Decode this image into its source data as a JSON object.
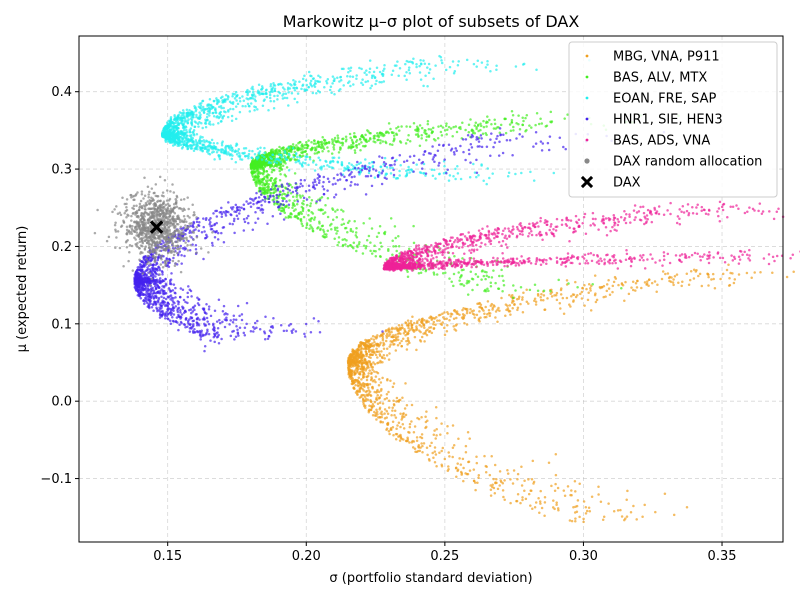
{
  "chart_data": {
    "type": "scatter",
    "title": "Markowitz μ–σ plot of subsets of DAX",
    "xlabel": "σ  (portfolio standard deviation)",
    "ylabel": "μ  (expected return)",
    "xlim": [
      0.118,
      0.372
    ],
    "ylim": [
      -0.182,
      0.472
    ],
    "xticks": [
      0.15,
      0.2,
      0.25,
      0.3,
      0.35
    ],
    "xtick_labels": [
      "0.15",
      "0.20",
      "0.25",
      "0.30",
      "0.35"
    ],
    "yticks": [
      -0.1,
      0.0,
      0.1,
      0.2,
      0.3,
      0.4
    ],
    "ytick_labels": [
      "−0.1",
      "0.0",
      "0.1",
      "0.2",
      "0.3",
      "0.4"
    ],
    "grid": true,
    "legend_position": "top-right",
    "series": [
      {
        "name": "MBG, VNA, P911",
        "color": "#f0a020",
        "frontier": {
          "vertex": [
            0.215,
            0.05
          ],
          "upper_end": [
            0.34,
            0.17
          ],
          "lower_end": [
            0.295,
            -0.155
          ]
        },
        "shape": "hyperbola-cloud",
        "points_sample": [
          [
            0.215,
            0.05
          ],
          [
            0.25,
            0.12
          ],
          [
            0.3,
            0.155
          ],
          [
            0.34,
            0.17
          ],
          [
            0.25,
            -0.06
          ],
          [
            0.295,
            -0.155
          ]
        ]
      },
      {
        "name": "BAS, ALV, MTX",
        "color": "#44ee22",
        "frontier": {
          "vertex": [
            0.18,
            0.305
          ],
          "upper_end": [
            0.278,
            0.365
          ],
          "lower_end": [
            0.265,
            0.14
          ]
        },
        "shape": "hyperbola-cloud",
        "points_sample": [
          [
            0.18,
            0.305
          ],
          [
            0.23,
            0.35
          ],
          [
            0.278,
            0.365
          ],
          [
            0.22,
            0.23
          ],
          [
            0.265,
            0.14
          ]
        ]
      },
      {
        "name": "EOAN, FRE, SAP",
        "color": "#22eeee",
        "frontier": {
          "vertex": [
            0.148,
            0.345
          ],
          "upper_end": [
            0.24,
            0.44
          ],
          "lower_end": [
            0.248,
            0.29
          ]
        },
        "shape": "hyperbola-cloud",
        "points_sample": [
          [
            0.148,
            0.345
          ],
          [
            0.19,
            0.4
          ],
          [
            0.24,
            0.44
          ],
          [
            0.2,
            0.305
          ],
          [
            0.248,
            0.29
          ]
        ]
      },
      {
        "name": "HNR1, SIE, HEN3",
        "color": "#4422ee",
        "frontier": {
          "vertex": [
            0.138,
            0.155
          ],
          "upper_end": [
            0.27,
            0.345
          ],
          "lower_end": [
            0.165,
            0.08
          ]
        },
        "shape": "hyperbola-cloud",
        "points_sample": [
          [
            0.138,
            0.155
          ],
          [
            0.18,
            0.23
          ],
          [
            0.22,
            0.29
          ],
          [
            0.27,
            0.345
          ],
          [
            0.15,
            0.12
          ],
          [
            0.165,
            0.08
          ]
        ]
      },
      {
        "name": "BAS, ADS, VNA",
        "color": "#ee2299",
        "frontier": {
          "vertex": [
            0.228,
            0.172
          ],
          "upper_end": [
            0.345,
            0.252
          ],
          "lower_end": [
            0.362,
            0.188
          ]
        },
        "shape": "hyperbola-cloud",
        "points_sample": [
          [
            0.228,
            0.172
          ],
          [
            0.28,
            0.222
          ],
          [
            0.345,
            0.252
          ],
          [
            0.3,
            0.2
          ],
          [
            0.362,
            0.188
          ]
        ]
      },
      {
        "name": "DAX random allocation",
        "color": "#888888",
        "center": [
          0.146,
          0.225
        ],
        "spread": [
          0.006,
          0.022
        ],
        "shape": "gaussian-cloud",
        "points_sample": [
          [
            0.146,
            0.225
          ],
          [
            0.135,
            0.17
          ],
          [
            0.15,
            0.29
          ],
          [
            0.158,
            0.21
          ]
        ]
      }
    ],
    "markers": [
      {
        "name": "DAX",
        "x": 0.146,
        "y": 0.225,
        "marker": "X",
        "color": "#000000"
      }
    ]
  }
}
